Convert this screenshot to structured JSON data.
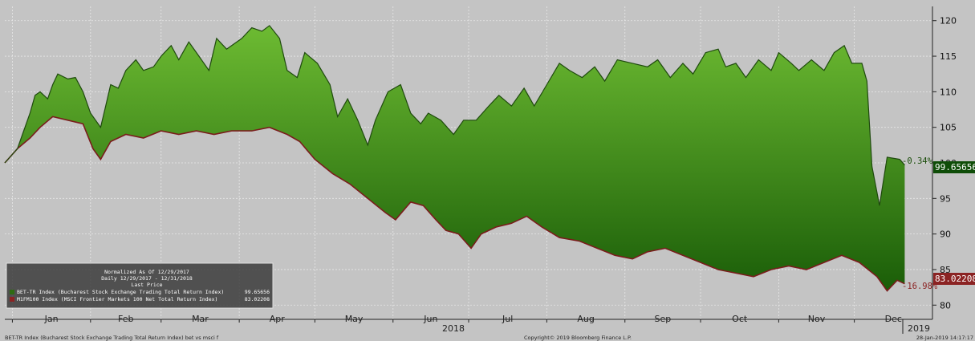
{
  "colors": {
    "background": "#c4c4c4",
    "fill_top": "#6dbb32",
    "fill_bottom": "#1a5d08",
    "bet_series": "#1f4a0e",
    "msci_series": "#7a1c1c",
    "bet_badge": "#0f4d08",
    "msci_badge": "#8b2323",
    "legend_bg": "#3c3c3c"
  },
  "legend": {
    "title": "Normalized As Of 12/29/2017",
    "subtitle": "Daily 12/29/2017 - 12/31/2018",
    "column_header": "Last Price",
    "entries": [
      {
        "label": "BET-TR Index (Bucharest Stock Exchange Trading Total Return Index)",
        "value": "99.65656",
        "color": "#2e6b12"
      },
      {
        "label": "M1FM100 Index (MSCI Frontier Markets 100 Net Total Return Index)",
        "value": "83.02208",
        "color": "#8b2323"
      }
    ]
  },
  "end_labels": {
    "bet": {
      "pct": "-0.34%",
      "value": "99.65656"
    },
    "msci": {
      "pct": "-16.98%",
      "value": "83.02208"
    }
  },
  "footer": {
    "left": "BET-TR Index (Bucharest Stock Exchange Trading Total Return Index) bet vs msci f",
    "center": "Copyright© 2019 Bloomberg Finance L.P.",
    "right": "28-Jan-2019 14:17:17"
  },
  "year_labels": {
    "main": "2018",
    "next": "2019"
  },
  "chart_data": {
    "type": "area",
    "y_axis": {
      "position": "right",
      "ticks": [
        80,
        85,
        90,
        95,
        100,
        105,
        110,
        115,
        120
      ],
      "ylim": [
        78,
        122
      ]
    },
    "x_tick_labels": [
      "Jan",
      "Feb",
      "Mar",
      "Apr",
      "May",
      "Jun",
      "Jul",
      "Aug",
      "Sep",
      "Oct",
      "Nov",
      "Dec"
    ],
    "grid": true,
    "fill_between": true,
    "series": [
      {
        "name": "BET-TR Index (Bucharest Stock Exchange Trading Total Return Index)",
        "last": 99.65656,
        "points": [
          [
            "2017-12-29",
            100.0
          ],
          [
            "2018-01-03",
            102.0
          ],
          [
            "2018-01-05",
            104.0
          ],
          [
            "2018-01-08",
            107.0
          ],
          [
            "2018-01-10",
            109.5
          ],
          [
            "2018-01-12",
            110.0
          ],
          [
            "2018-01-15",
            109.0
          ],
          [
            "2018-01-17",
            111.0
          ],
          [
            "2018-01-19",
            112.5
          ],
          [
            "2018-01-23",
            111.8
          ],
          [
            "2018-01-26",
            112.0
          ],
          [
            "2018-01-29",
            110.0
          ],
          [
            "2018-02-01",
            107.0
          ],
          [
            "2018-02-05",
            105.0
          ],
          [
            "2018-02-07",
            108.0
          ],
          [
            "2018-02-09",
            111.0
          ],
          [
            "2018-02-12",
            110.5
          ],
          [
            "2018-02-15",
            113.0
          ],
          [
            "2018-02-19",
            114.5
          ],
          [
            "2018-02-22",
            113.0
          ],
          [
            "2018-02-26",
            113.5
          ],
          [
            "2018-03-01",
            115.0
          ],
          [
            "2018-03-05",
            116.5
          ],
          [
            "2018-03-08",
            114.5
          ],
          [
            "2018-03-12",
            117.0
          ],
          [
            "2018-03-16",
            115.0
          ],
          [
            "2018-03-20",
            113.0
          ],
          [
            "2018-03-23",
            117.5
          ],
          [
            "2018-03-27",
            116.0
          ],
          [
            "2018-04-02",
            117.5
          ],
          [
            "2018-04-06",
            119.0
          ],
          [
            "2018-04-10",
            118.5
          ],
          [
            "2018-04-13",
            119.3
          ],
          [
            "2018-04-17",
            117.5
          ],
          [
            "2018-04-20",
            113.0
          ],
          [
            "2018-04-24",
            112.0
          ],
          [
            "2018-04-27",
            115.5
          ],
          [
            "2018-05-02",
            114.0
          ],
          [
            "2018-05-07",
            111.0
          ],
          [
            "2018-05-10",
            106.5
          ],
          [
            "2018-05-14",
            109.0
          ],
          [
            "2018-05-18",
            106.0
          ],
          [
            "2018-05-22",
            102.5
          ],
          [
            "2018-05-25",
            106.0
          ],
          [
            "2018-05-30",
            110.0
          ],
          [
            "2018-06-04",
            111.0
          ],
          [
            "2018-06-08",
            107.0
          ],
          [
            "2018-06-12",
            105.5
          ],
          [
            "2018-06-15",
            107.0
          ],
          [
            "2018-06-20",
            106.0
          ],
          [
            "2018-06-25",
            104.0
          ],
          [
            "2018-06-29",
            106.0
          ],
          [
            "2018-07-04",
            106.0
          ],
          [
            "2018-07-09",
            108.0
          ],
          [
            "2018-07-13",
            109.5
          ],
          [
            "2018-07-18",
            108.0
          ],
          [
            "2018-07-23",
            110.5
          ],
          [
            "2018-07-27",
            108.0
          ],
          [
            "2018-08-01",
            111.0
          ],
          [
            "2018-08-06",
            114.0
          ],
          [
            "2018-08-10",
            113.0
          ],
          [
            "2018-08-15",
            112.0
          ],
          [
            "2018-08-20",
            113.5
          ],
          [
            "2018-08-24",
            111.5
          ],
          [
            "2018-08-29",
            114.5
          ],
          [
            "2018-09-04",
            114.0
          ],
          [
            "2018-09-10",
            113.5
          ],
          [
            "2018-09-14",
            114.5
          ],
          [
            "2018-09-19",
            112.0
          ],
          [
            "2018-09-24",
            114.0
          ],
          [
            "2018-09-28",
            112.5
          ],
          [
            "2018-10-03",
            115.5
          ],
          [
            "2018-10-08",
            116.0
          ],
          [
            "2018-10-11",
            113.5
          ],
          [
            "2018-10-15",
            114.0
          ],
          [
            "2018-10-19",
            112.0
          ],
          [
            "2018-10-24",
            114.5
          ],
          [
            "2018-10-29",
            113.0
          ],
          [
            "2018-11-01",
            115.5
          ],
          [
            "2018-11-06",
            114.0
          ],
          [
            "2018-11-09",
            113.0
          ],
          [
            "2018-11-14",
            114.5
          ],
          [
            "2018-11-19",
            113.0
          ],
          [
            "2018-11-23",
            115.5
          ],
          [
            "2018-11-27",
            116.5
          ],
          [
            "2018-11-30",
            114.0
          ],
          [
            "2018-12-04",
            114.0
          ],
          [
            "2018-12-06",
            111.5
          ],
          [
            "2018-12-08",
            99.5
          ],
          [
            "2018-12-11",
            94.0
          ],
          [
            "2018-12-14",
            100.8
          ],
          [
            "2018-12-19",
            100.5
          ],
          [
            "2018-12-21",
            99.7
          ]
        ]
      },
      {
        "name": "M1FM100 Index (MSCI Frontier Markets 100 Net Total Return Index)",
        "last": 83.02208,
        "points": [
          [
            "2017-12-29",
            100.0
          ],
          [
            "2018-01-03",
            102.0
          ],
          [
            "2018-01-08",
            103.5
          ],
          [
            "2018-01-12",
            105.0
          ],
          [
            "2018-01-17",
            106.5
          ],
          [
            "2018-01-23",
            106.0
          ],
          [
            "2018-01-29",
            105.5
          ],
          [
            "2018-02-02",
            102.0
          ],
          [
            "2018-02-05",
            100.5
          ],
          [
            "2018-02-09",
            103.0
          ],
          [
            "2018-02-15",
            104.0
          ],
          [
            "2018-02-22",
            103.5
          ],
          [
            "2018-03-01",
            104.5
          ],
          [
            "2018-03-08",
            104.0
          ],
          [
            "2018-03-15",
            104.5
          ],
          [
            "2018-03-22",
            104.0
          ],
          [
            "2018-03-29",
            104.5
          ],
          [
            "2018-04-06",
            104.5
          ],
          [
            "2018-04-13",
            105.0
          ],
          [
            "2018-04-20",
            104.0
          ],
          [
            "2018-04-25",
            103.0
          ],
          [
            "2018-05-01",
            100.5
          ],
          [
            "2018-05-08",
            98.5
          ],
          [
            "2018-05-15",
            97.0
          ],
          [
            "2018-05-22",
            95.0
          ],
          [
            "2018-05-29",
            93.0
          ],
          [
            "2018-06-02",
            92.0
          ],
          [
            "2018-06-08",
            94.5
          ],
          [
            "2018-06-13",
            94.0
          ],
          [
            "2018-06-18",
            92.0
          ],
          [
            "2018-06-22",
            90.5
          ],
          [
            "2018-06-27",
            90.0
          ],
          [
            "2018-07-02",
            88.0
          ],
          [
            "2018-07-06",
            90.0
          ],
          [
            "2018-07-12",
            91.0
          ],
          [
            "2018-07-18",
            91.5
          ],
          [
            "2018-07-24",
            92.5
          ],
          [
            "2018-07-30",
            91.0
          ],
          [
            "2018-08-06",
            89.5
          ],
          [
            "2018-08-14",
            89.0
          ],
          [
            "2018-08-21",
            88.0
          ],
          [
            "2018-08-28",
            87.0
          ],
          [
            "2018-09-04",
            86.5
          ],
          [
            "2018-09-10",
            87.5
          ],
          [
            "2018-09-17",
            88.0
          ],
          [
            "2018-09-24",
            87.0
          ],
          [
            "2018-10-01",
            86.0
          ],
          [
            "2018-10-08",
            85.0
          ],
          [
            "2018-10-15",
            84.5
          ],
          [
            "2018-10-22",
            84.0
          ],
          [
            "2018-10-29",
            85.0
          ],
          [
            "2018-11-05",
            85.5
          ],
          [
            "2018-11-12",
            85.0
          ],
          [
            "2018-11-19",
            86.0
          ],
          [
            "2018-11-26",
            87.0
          ],
          [
            "2018-12-03",
            86.0
          ],
          [
            "2018-12-10",
            84.0
          ],
          [
            "2018-12-14",
            82.0
          ],
          [
            "2018-12-18",
            83.5
          ],
          [
            "2018-12-21",
            83.0
          ]
        ]
      }
    ]
  }
}
